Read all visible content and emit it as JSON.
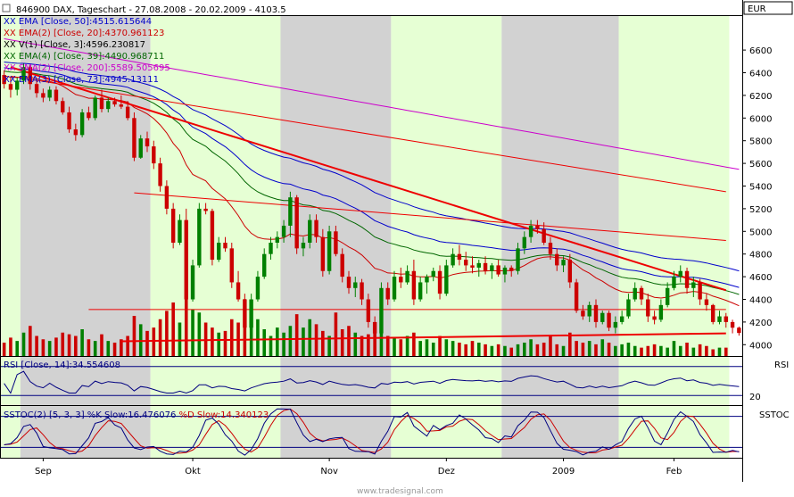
{
  "header": {
    "title": "846900 DAX, Tageschart - 27.08.2008 - 20.02.2009 - 4103.5",
    "currency": "EUR",
    "icon_names": [
      "close-box-icon",
      "legend-x-icon"
    ]
  },
  "legend": [
    {
      "text": "EMA [Close, 50]:4515.615644",
      "color": "#0000cc"
    },
    {
      "text": "EMA(2) [Close, 20]:4370.961123",
      "color": "#cc0000"
    },
    {
      "text": "V(1) [Close, 3]:4596.230817",
      "color": "#000000"
    },
    {
      "text": "EMA(4) [Close, 39]:4490.968711",
      "color": "#006600"
    },
    {
      "text": "SMA(2) [Close, 200]:5589.505695",
      "color": "#cc00cc"
    },
    {
      "text": "EMA(3) [Close, 73]:4945.13111",
      "color": "#0000cc"
    }
  ],
  "panels": {
    "rsi": {
      "legend": "RSI [Close, 14]:34.554608",
      "label": "RSI",
      "level_label": "20"
    },
    "sstoc": {
      "legend_pre": "SSTOC(2) [5, 3, 3]",
      "legend_k": " %K Slow:16.476076",
      "legend_d": " %D Slow:14.340123",
      "label": "SSTOC"
    }
  },
  "footer": {
    "watermark": "www.tradesignal.com"
  },
  "colors": {
    "green_band": "#e6ffd4",
    "gray_band": "#d2d2d2",
    "up_candle": "#008000",
    "down_candle": "#cc0000",
    "trendline": "#ee0000",
    "price_line": "#000080"
  },
  "chart_data": {
    "type": "candlestick",
    "title": "846900 DAX, Tageschart - 27.08.2008 - 20.02.2009 - 4103.5",
    "y_unit": "EUR",
    "ylim": [
      3900,
      6900
    ],
    "y_ticks": [
      4000,
      4200,
      4400,
      4600,
      4800,
      5000,
      5200,
      5400,
      5600,
      5800,
      6000,
      6200,
      6400,
      6600
    ],
    "x_tick_labels": [
      "Sep",
      "Okt",
      "Nov",
      "Dez",
      "2009",
      "Feb"
    ],
    "x_tick_positions": [
      6,
      29,
      50,
      68,
      86,
      103
    ],
    "month_bands": [
      {
        "start": 0,
        "end": 3,
        "shade": "green"
      },
      {
        "start": 3,
        "end": 23,
        "shade": "gray"
      },
      {
        "start": 23,
        "end": 43,
        "shade": "green"
      },
      {
        "start": 43,
        "end": 60,
        "shade": "gray"
      },
      {
        "start": 60,
        "end": 77,
        "shade": "green"
      },
      {
        "start": 77,
        "end": 95,
        "shade": "gray"
      },
      {
        "start": 95,
        "end": 112,
        "shade": "green"
      }
    ],
    "candles": [
      [
        6380,
        6420,
        6260,
        6300
      ],
      [
        6300,
        6360,
        6180,
        6250
      ],
      [
        6250,
        6360,
        6200,
        6330
      ],
      [
        6330,
        6480,
        6300,
        6450
      ],
      [
        6450,
        6470,
        6250,
        6300
      ],
      [
        6300,
        6350,
        6180,
        6220
      ],
      [
        6220,
        6260,
        6140,
        6180
      ],
      [
        6180,
        6280,
        6150,
        6250
      ],
      [
        6250,
        6280,
        6120,
        6150
      ],
      [
        6150,
        6180,
        6030,
        6050
      ],
      [
        6050,
        6100,
        5870,
        5900
      ],
      [
        5900,
        5950,
        5800,
        5850
      ],
      [
        5850,
        6080,
        5830,
        6050
      ],
      [
        6050,
        6100,
        5980,
        6000
      ],
      [
        6000,
        6200,
        5980,
        6180
      ],
      [
        6180,
        6250,
        6050,
        6080
      ],
      [
        6080,
        6180,
        6050,
        6150
      ],
      [
        6150,
        6180,
        6100,
        6120
      ],
      [
        6120,
        6200,
        6080,
        6100
      ],
      [
        6100,
        6150,
        5980,
        6000
      ],
      [
        6000,
        6050,
        5620,
        5650
      ],
      [
        5650,
        5850,
        5640,
        5820
      ],
      [
        5820,
        5880,
        5700,
        5750
      ],
      [
        5750,
        5800,
        5550,
        5600
      ],
      [
        5600,
        5650,
        5350,
        5400
      ],
      [
        5400,
        5450,
        5150,
        5200
      ],
      [
        5200,
        5250,
        4850,
        4900
      ],
      [
        4900,
        5150,
        4880,
        5100
      ],
      [
        5100,
        5200,
        4360,
        4400
      ],
      [
        4400,
        4750,
        4380,
        4700
      ],
      [
        4700,
        5250,
        4680,
        5200
      ],
      [
        5200,
        5250,
        5150,
        5180
      ],
      [
        5180,
        5200,
        4700,
        4750
      ],
      [
        4750,
        4950,
        4730,
        4900
      ],
      [
        4900,
        4950,
        4820,
        4850
      ],
      [
        4850,
        4900,
        4500,
        4550
      ],
      [
        4550,
        4650,
        4380,
        4400
      ],
      [
        4400,
        4450,
        4110,
        4150
      ],
      [
        4150,
        4450,
        4030,
        4400
      ],
      [
        4400,
        4650,
        4380,
        4600
      ],
      [
        4600,
        4850,
        4580,
        4800
      ],
      [
        4800,
        4950,
        4750,
        4900
      ],
      [
        4900,
        5000,
        4850,
        4950
      ],
      [
        4950,
        5100,
        4900,
        5050
      ],
      [
        5050,
        5350,
        4950,
        5300
      ],
      [
        5300,
        5320,
        4800,
        4850
      ],
      [
        4850,
        4950,
        4780,
        4900
      ],
      [
        4900,
        5150,
        4850,
        5100
      ],
      [
        5100,
        5150,
        4900,
        4950
      ],
      [
        4950,
        5020,
        4600,
        4650
      ],
      [
        4650,
        5050,
        4620,
        5000
      ],
      [
        5000,
        5050,
        4780,
        4800
      ],
      [
        4800,
        4850,
        4550,
        4600
      ],
      [
        4600,
        4650,
        4450,
        4500
      ],
      [
        4500,
        4600,
        4420,
        4550
      ],
      [
        4550,
        4580,
        4350,
        4400
      ],
      [
        4400,
        4450,
        4150,
        4200
      ],
      [
        4200,
        4250,
        4060,
        4100
      ],
      [
        4100,
        4550,
        4080,
        4500
      ],
      [
        4500,
        4550,
        4350,
        4400
      ],
      [
        4400,
        4650,
        4380,
        4600
      ],
      [
        4600,
        4680,
        4500,
        4550
      ],
      [
        4550,
        4700,
        4530,
        4650
      ],
      [
        4650,
        4750,
        4350,
        4400
      ],
      [
        4400,
        4600,
        4380,
        4550
      ],
      [
        4550,
        4620,
        4450,
        4600
      ],
      [
        4600,
        4680,
        4560,
        4650
      ],
      [
        4650,
        4700,
        4400,
        4450
      ],
      [
        4450,
        4750,
        4430,
        4700
      ],
      [
        4700,
        4850,
        4680,
        4800
      ],
      [
        4800,
        4880,
        4700,
        4750
      ],
      [
        4750,
        4820,
        4650,
        4700
      ],
      [
        4700,
        4780,
        4630,
        4680
      ],
      [
        4680,
        4750,
        4600,
        4720
      ],
      [
        4720,
        4780,
        4620,
        4650
      ],
      [
        4650,
        4720,
        4580,
        4700
      ],
      [
        4700,
        4750,
        4600,
        4620
      ],
      [
        4620,
        4700,
        4550,
        4680
      ],
      [
        4680,
        4700,
        4600,
        4650
      ],
      [
        4650,
        4900,
        4620,
        4850
      ],
      [
        4850,
        5000,
        4800,
        4950
      ],
      [
        4950,
        5100,
        4900,
        5050
      ],
      [
        5050,
        5100,
        4980,
        5020
      ],
      [
        5020,
        5080,
        4880,
        4900
      ],
      [
        4900,
        4950,
        4750,
        4800
      ],
      [
        4800,
        4850,
        4650,
        4700
      ],
      [
        4700,
        4780,
        4640,
        4750
      ],
      [
        4750,
        4800,
        4500,
        4550
      ],
      [
        4550,
        4580,
        4280,
        4300
      ],
      [
        4300,
        4350,
        4220,
        4250
      ],
      [
        4250,
        4380,
        4200,
        4350
      ],
      [
        4350,
        4400,
        4150,
        4200
      ],
      [
        4200,
        4300,
        4180,
        4280
      ],
      [
        4280,
        4300,
        4120,
        4150
      ],
      [
        4150,
        4250,
        4100,
        4200
      ],
      [
        4200,
        4300,
        4180,
        4250
      ],
      [
        4250,
        4450,
        4230,
        4400
      ],
      [
        4400,
        4550,
        4380,
        4500
      ],
      [
        4500,
        4520,
        4350,
        4400
      ],
      [
        4400,
        4450,
        4200,
        4250
      ],
      [
        4250,
        4300,
        4180,
        4220
      ],
      [
        4220,
        4400,
        4200,
        4350
      ],
      [
        4350,
        4550,
        4330,
        4500
      ],
      [
        4500,
        4650,
        4480,
        4600
      ],
      [
        4600,
        4700,
        4550,
        4650
      ],
      [
        4650,
        4680,
        4450,
        4500
      ],
      [
        4500,
        4600,
        4420,
        4550
      ],
      [
        4550,
        4580,
        4350,
        4400
      ],
      [
        4400,
        4450,
        4300,
        4350
      ],
      [
        4350,
        4360,
        4180,
        4200
      ],
      [
        4200,
        4300,
        4180,
        4250
      ],
      [
        4250,
        4280,
        4150,
        4200
      ],
      [
        4200,
        4220,
        4100,
        4150
      ],
      [
        4150,
        4160,
        4080,
        4103.5
      ]
    ],
    "volume": [
      8,
      11,
      9,
      14,
      18,
      12,
      10,
      9,
      11,
      14,
      13,
      12,
      16,
      10,
      9,
      13,
      9,
      8,
      10,
      12,
      24,
      19,
      15,
      17,
      22,
      27,
      32,
      20,
      38,
      28,
      26,
      20,
      17,
      14,
      15,
      22,
      20,
      34,
      28,
      22,
      16,
      12,
      17,
      14,
      18,
      25,
      17,
      22,
      19,
      15,
      12,
      26,
      16,
      18,
      14,
      12,
      13,
      18,
      16,
      12,
      11,
      10,
      12,
      14,
      9,
      10,
      8,
      12,
      10,
      9,
      8,
      7,
      9,
      8,
      7,
      6,
      7,
      6,
      5,
      7,
      8,
      10,
      7,
      8,
      12,
      7,
      6,
      14,
      9,
      8,
      9,
      7,
      10,
      8,
      6,
      7,
      8,
      6,
      5,
      6,
      7,
      6,
      5,
      9,
      6,
      8,
      5,
      7,
      6,
      4,
      5,
      5
    ],
    "trendlines": [
      {
        "label": "downtrend",
        "points": [
          [
            1,
            6450
          ],
          [
            111,
            4480
          ]
        ],
        "weight": "bold"
      },
      {
        "label": "support_upper",
        "points": [
          [
            13,
            4310
          ],
          [
            111,
            4310
          ]
        ],
        "weight": "thin"
      },
      {
        "label": "support_lower",
        "points": [
          [
            18,
            4030
          ],
          [
            111,
            4100
          ]
        ],
        "weight": "bold"
      },
      {
        "label": "channel_high",
        "points": [
          [
            1,
            6370
          ],
          [
            111,
            5350
          ]
        ],
        "weight": "thin"
      },
      {
        "label": "channel_mid",
        "points": [
          [
            20,
            5340
          ],
          [
            111,
            4920
          ]
        ],
        "weight": "thin"
      }
    ],
    "rsi": {
      "ylim": [
        0,
        100
      ],
      "level": 20
    },
    "sstoc": {
      "ylim": [
        0,
        100
      ],
      "levels": [
        20,
        80
      ]
    }
  }
}
